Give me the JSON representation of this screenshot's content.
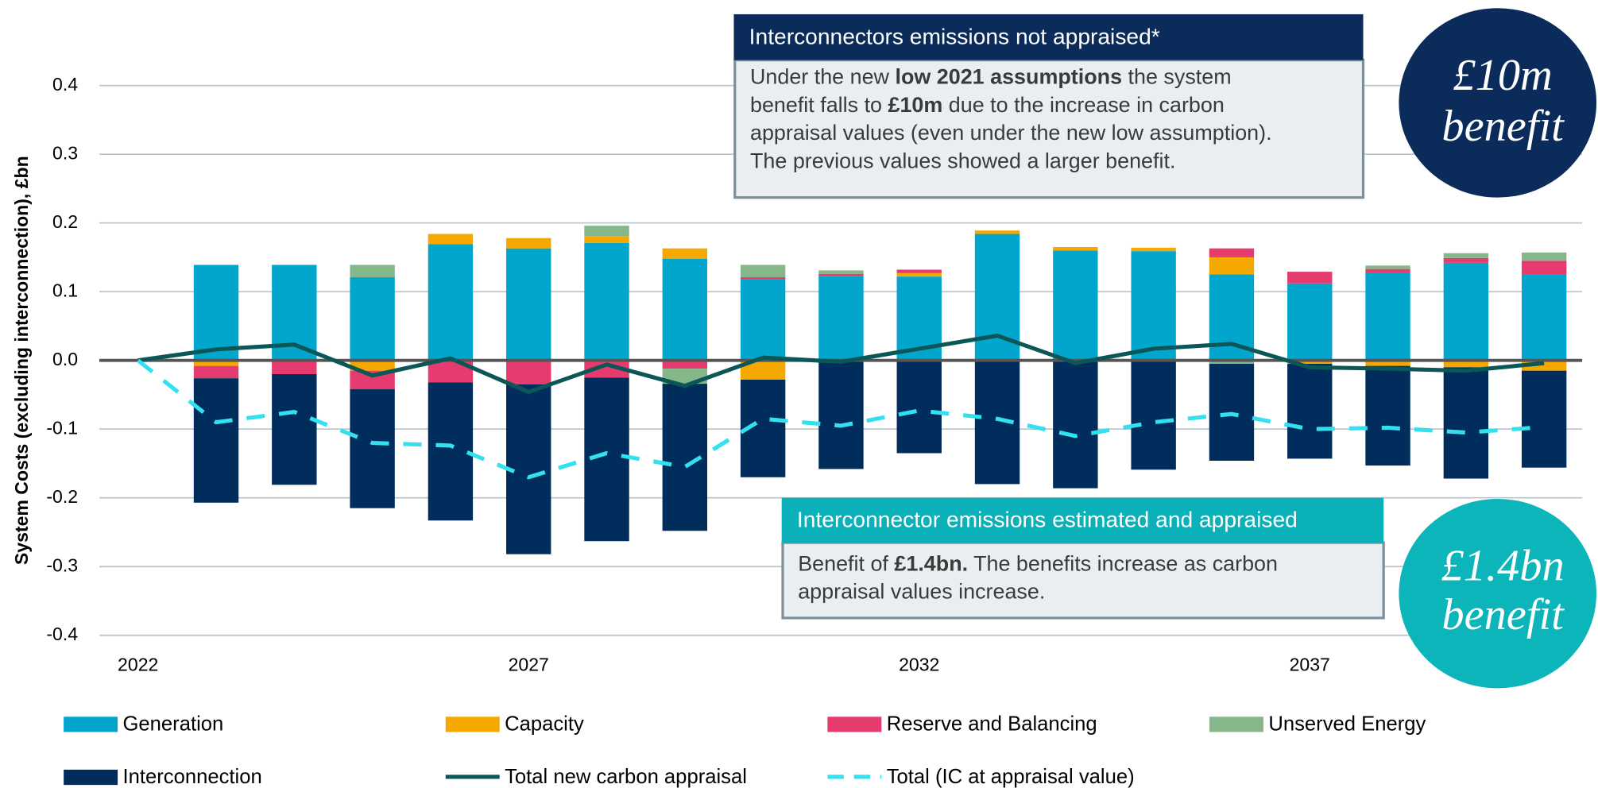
{
  "chart_data": {
    "type": "stacked_bar_line",
    "y_label": "System Costs (excluding interconnection), £bn",
    "categories": [
      "2022",
      null,
      null,
      null,
      null,
      "2027",
      null,
      null,
      null,
      null,
      "2032",
      null,
      null,
      null,
      null,
      "2037",
      null,
      null,
      null
    ],
    "ylim": [
      -0.4,
      0.4
    ],
    "yticks": [
      -0.4,
      -0.3,
      -0.2,
      -0.1,
      {
        "value": 0,
        "label": "0.0"
      },
      0.1,
      0.2,
      0.3,
      0.4
    ],
    "grid": true,
    "series": [
      {
        "name": "Generation",
        "kind": "bar",
        "color": "#02a5cb",
        "values": [
          null,
          0.139,
          0.139,
          0.121,
          0.169,
          0.163,
          0.171,
          0.148,
          0.118,
          0.123,
          0.122,
          0.184,
          0.16,
          0.159,
          0.125,
          0.112,
          0.128,
          0.142,
          0.125
        ]
      },
      {
        "name": "Capacity",
        "kind": "bar",
        "color": "#f5a800",
        "values": [
          null,
          -0.008,
          null,
          -0.015,
          0.015,
          0.015,
          0.01,
          0.015,
          -0.028,
          null,
          0.005,
          0.005,
          0.005,
          0.005,
          0.025,
          -0.005,
          -0.008,
          -0.01,
          -0.015
        ]
      },
      {
        "name": "Reserve and Balancing",
        "kind": "bar",
        "color": "#e63b6e",
        "values": [
          null,
          -0.018,
          -0.02,
          -0.027,
          -0.032,
          -0.035,
          -0.025,
          -0.012,
          0.003,
          0.003,
          0.005,
          null,
          null,
          null,
          0.013,
          0.017,
          0.005,
          0.007,
          0.02
        ]
      },
      {
        "name": "Unserved Energy",
        "kind": "bar",
        "color": "#86b78a",
        "values": [
          null,
          null,
          null,
          0.018,
          null,
          null,
          0.015,
          -0.022,
          0.018,
          0.005,
          null,
          null,
          null,
          null,
          -0.005,
          null,
          0.005,
          0.007,
          0.012
        ]
      },
      {
        "name": "Interconnection",
        "kind": "bar",
        "color": "#002d5c",
        "values": [
          null,
          -0.181,
          -0.161,
          -0.173,
          -0.201,
          -0.247,
          -0.238,
          -0.214,
          -0.142,
          -0.158,
          -0.135,
          -0.18,
          -0.186,
          -0.159,
          -0.141,
          -0.138,
          -0.145,
          -0.162,
          -0.141
        ]
      },
      {
        "name": "Total new carbon appraisal",
        "kind": "line",
        "color": "#0b5757",
        "values": [
          0,
          0.016,
          0.023,
          -0.022,
          0.003,
          -0.046,
          -0.006,
          -0.037,
          0.004,
          -0.002,
          0.017,
          0.036,
          -0.004,
          0.017,
          0.024,
          -0.01,
          -0.012,
          -0.015,
          -0.004
        ]
      },
      {
        "name": "Total (IC at appraisal value)",
        "kind": "dashed",
        "color": "#33e0f0",
        "values": [
          0,
          -0.09,
          -0.075,
          -0.12,
          -0.124,
          -0.17,
          -0.135,
          -0.155,
          -0.085,
          -0.095,
          -0.073,
          -0.085,
          -0.11,
          -0.09,
          -0.078,
          -0.1,
          -0.098,
          -0.105,
          -0.097
        ]
      }
    ],
    "annotations": [
      {
        "title": "Interconnectors emissions not appraised*",
        "lines": [
          [
            {
              "text": "Under the new "
            },
            {
              "text": "low 2021 assumptions",
              "bold": true
            },
            {
              "text": " the system"
            }
          ],
          [
            {
              "text": "benefit falls to "
            },
            {
              "text": "£10m",
              "bold": true
            },
            {
              "text": " due to the increase in carbon"
            }
          ],
          [
            {
              "text": "appraisal values (even under the new low assumption)."
            }
          ],
          [
            {
              "text": "The previous values showed a larger benefit."
            }
          ]
        ],
        "badge": [
          "£10m",
          "benefit"
        ]
      },
      {
        "title": "Interconnector emissions estimated and appraised",
        "lines": [
          [
            {
              "text": "Benefit of "
            },
            {
              "text": "£1.4bn.",
              "bold": true
            },
            {
              "text": " The benefits increase as carbon"
            }
          ],
          [
            {
              "text": "appraisal values increase."
            }
          ]
        ],
        "badge": [
          "£1.4bn",
          "benefit"
        ]
      }
    ]
  }
}
